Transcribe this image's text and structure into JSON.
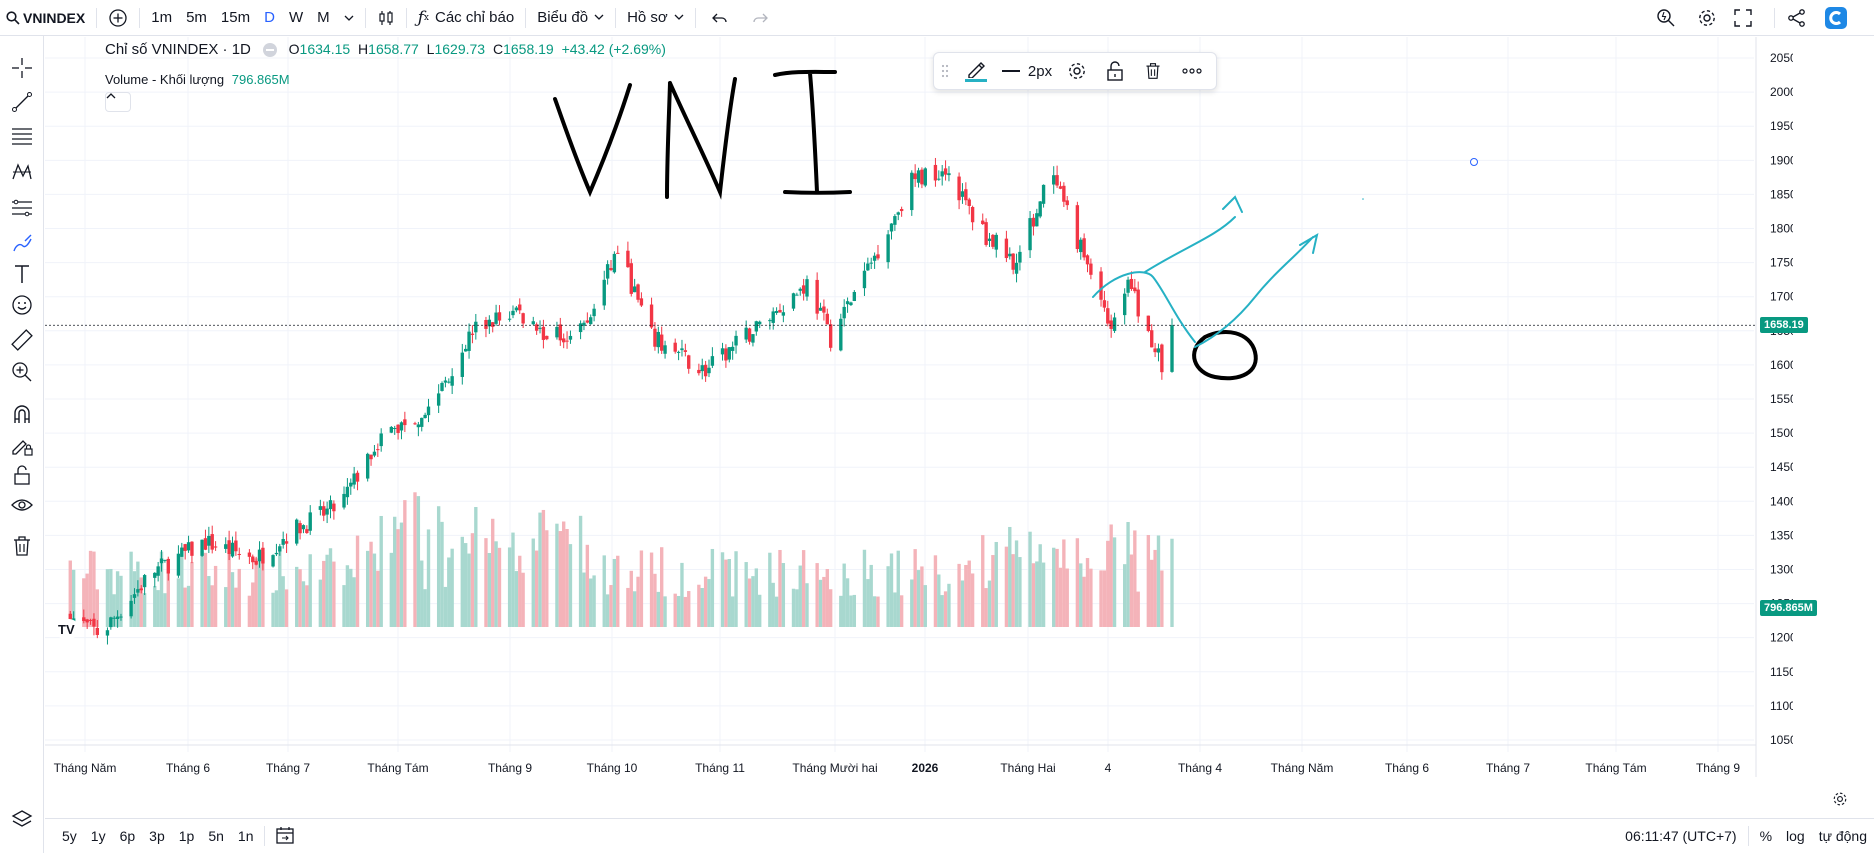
{
  "toolbar": {
    "symbol": "VNINDEX",
    "intervals": [
      "1m",
      "5m",
      "15m",
      "D",
      "W",
      "M"
    ],
    "active_interval": "D",
    "indicators_label": "Các chỉ báo",
    "chart_label": "Biểu đồ",
    "profile_label": "Hồ sơ"
  },
  "legend": {
    "title": "Chỉ số VNINDEX · 1D",
    "o_label": "O",
    "o": "1634.15",
    "h_label": "H",
    "h": "1658.77",
    "l_label": "L",
    "l": "1629.73",
    "c_label": "C",
    "c": "1658.19",
    "change": "+43.42 (+2.69%)",
    "volume_label": "Volume - Khối lượng",
    "volume_value": "796.865M"
  },
  "drawing_toolbar": {
    "width_label": "2px"
  },
  "annotation": {
    "handwritten_text": "VNI"
  },
  "price_axis": {
    "ticks": [
      "2050.00",
      "2000.00",
      "1950.00",
      "1900.00",
      "1850.00",
      "1800.00",
      "1750.00",
      "1700.00",
      "1650.00",
      "1600.00",
      "1550.00",
      "1500.00",
      "1450.00",
      "1400.00",
      "1350.00",
      "1300.00",
      "1250.00",
      "1200.00",
      "1150.00",
      "1100.00",
      "1050.00"
    ],
    "last_price_label": "1658.19",
    "volume_label": "796.865M"
  },
  "time_axis": {
    "labels": [
      "Tháng Năm",
      "Tháng 6",
      "Tháng 7",
      "Tháng Tám",
      "Tháng 9",
      "Tháng 10",
      "Tháng 11",
      "Tháng Mười hai",
      "2026",
      "Tháng Hai",
      "4",
      "Tháng 4",
      "Tháng Năm",
      "Tháng 6",
      "Tháng 7",
      "Tháng Tám",
      "Tháng 9"
    ]
  },
  "bottom": {
    "ranges": [
      "5y",
      "1y",
      "6p",
      "3p",
      "1p",
      "5n",
      "1n"
    ],
    "clock": "06:11:47 (UTC+7)",
    "percent": "%",
    "log": "log",
    "auto": "tự động"
  },
  "colors": {
    "up": "#089981",
    "down": "#f23645",
    "vol_up": "#a8d8cf",
    "vol_down": "#f4b3b9",
    "accent": "#2962ff",
    "drawing": "#26b1c4"
  },
  "chart_data": {
    "type": "candlestick",
    "symbol": "VNINDEX",
    "interval": "1D",
    "ylim": [
      1025,
      2075
    ],
    "last_close": 1658.19,
    "last_volume": "796.865M",
    "anchors": [
      {
        "x": "2025-05-01",
        "close": 1230
      },
      {
        "x": "2025-05-10",
        "close": 1205
      },
      {
        "x": "2025-05-25",
        "close": 1295
      },
      {
        "x": "2025-06-10",
        "close": 1340
      },
      {
        "x": "2025-06-25",
        "close": 1315
      },
      {
        "x": "2025-07-05",
        "close": 1355
      },
      {
        "x": "2025-07-20",
        "close": 1395
      },
      {
        "x": "2025-07-31",
        "close": 1490
      },
      {
        "x": "2025-08-15",
        "close": 1535
      },
      {
        "x": "2025-08-28",
        "close": 1650
      },
      {
        "x": "2025-09-10",
        "close": 1680
      },
      {
        "x": "2025-09-20",
        "close": 1640
      },
      {
        "x": "2025-10-01",
        "close": 1660
      },
      {
        "x": "2025-10-10",
        "close": 1770
      },
      {
        "x": "2025-10-20",
        "close": 1640
      },
      {
        "x": "2025-11-05",
        "close": 1590
      },
      {
        "x": "2025-11-20",
        "close": 1655
      },
      {
        "x": "2025-12-05",
        "close": 1720
      },
      {
        "x": "2025-12-12",
        "close": 1640
      },
      {
        "x": "2025-12-25",
        "close": 1760
      },
      {
        "x": "2026-01-05",
        "close": 1870
      },
      {
        "x": "2026-01-15",
        "close": 1890
      },
      {
        "x": "2026-01-25",
        "close": 1800
      },
      {
        "x": "2026-02-05",
        "close": 1750
      },
      {
        "x": "2026-02-15",
        "close": 1880
      },
      {
        "x": "2026-02-25",
        "close": 1760
      },
      {
        "x": "2026-03-05",
        "close": 1660
      },
      {
        "x": "2026-03-10",
        "close": 1720
      },
      {
        "x": "2026-03-20",
        "close": 1600
      },
      {
        "x": "2026-03-23",
        "close": 1658.19
      }
    ]
  }
}
